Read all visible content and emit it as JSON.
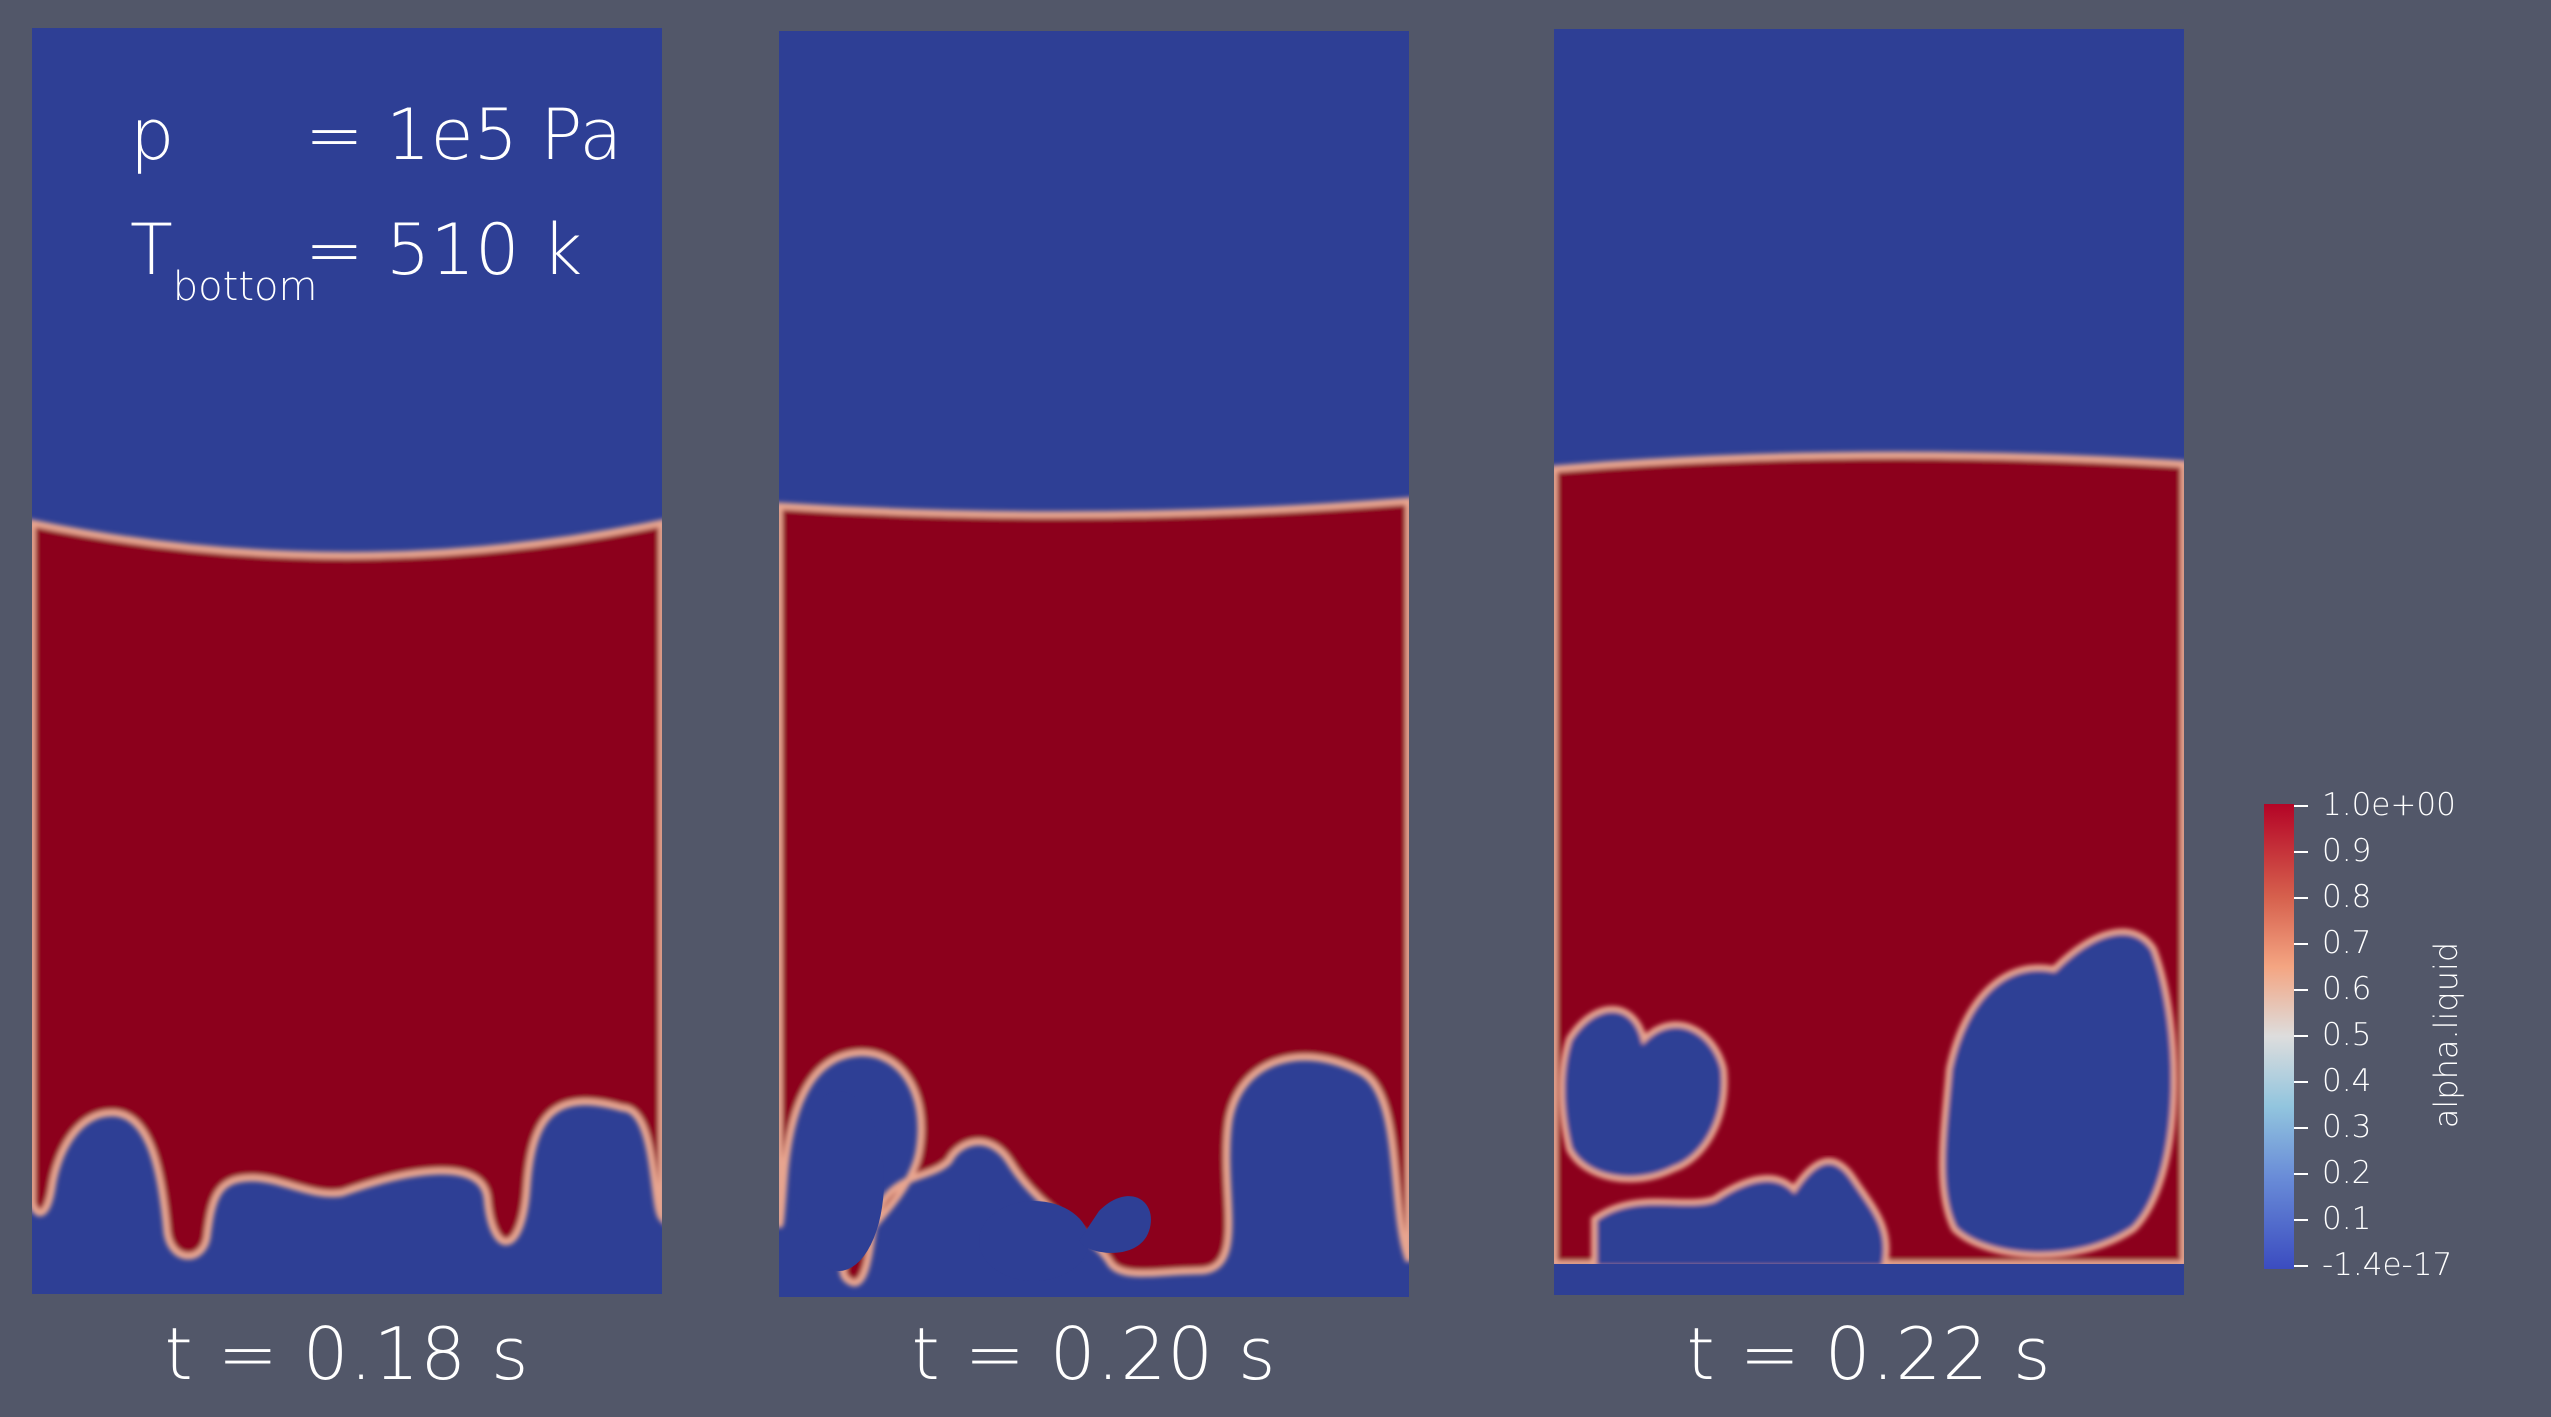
{
  "panels": [
    {
      "time_label": "t = 0.18 s"
    },
    {
      "time_label": "t = 0.20 s"
    },
    {
      "time_label": "t = 0.22 s"
    }
  ],
  "conditions": {
    "pressure_symbol": "p",
    "pressure_value": "= 1e5 Pa",
    "temperature_symbol": "T",
    "temperature_subscript": "bottom",
    "temperature_value": "= 510 k"
  },
  "colorbar": {
    "title": "alpha.liquid",
    "tick_labels": [
      "1.0e+00",
      "0.9",
      "0.8",
      "0.7",
      "0.6",
      "0.5",
      "0.4",
      "0.3",
      "0.2",
      "0.1",
      "-1.4e-17"
    ],
    "color_top": "#8c061f",
    "color_bottom": "#2e3f95"
  },
  "colors": {
    "background": "#525769",
    "liquid": "#8c061f",
    "vapor": "#2e3f95"
  }
}
